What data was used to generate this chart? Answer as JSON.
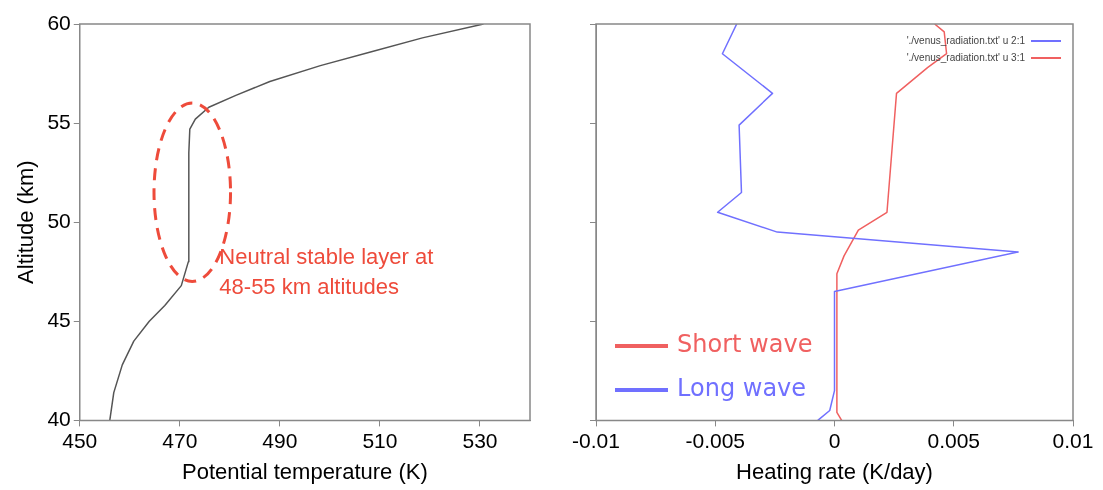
{
  "chart_data": [
    {
      "type": "line",
      "xlabel": "Potential temperature (K)",
      "ylabel": "Altitude (km)",
      "series": [
        {
          "color": "#555555",
          "x": [
            456,
            456.8,
            458.5,
            460.8,
            463.9,
            467.0,
            470.3,
            471.7,
            471.8,
            472.0,
            473.1,
            475.8,
            481.2,
            488,
            498.1,
            508.3,
            518.5,
            530.7
          ],
          "values": [
            40,
            41.4,
            42.8,
            44.0,
            45.0,
            45.8,
            46.8,
            48.0,
            53.5,
            54.7,
            55.2,
            55.8,
            56.4,
            57.1,
            57.9,
            58.6,
            59.3,
            60
          ]
        }
      ],
      "xlim": [
        450,
        540
      ],
      "xticks": [
        450,
        470,
        490,
        510,
        530
      ],
      "ylim": [
        40,
        60
      ],
      "yticks": [
        40,
        45,
        50,
        55,
        60
      ],
      "grid": false,
      "legend": false,
      "annotations": [
        "Neutral stable layer at 48-55 km altitudes"
      ]
    },
    {
      "type": "line",
      "xlabel": "Heating rate (K/day)",
      "series": [
        {
          "name": "'./venus_radiation.txt' u 2:1",
          "color": "#7070ff",
          "x": [
            -0.0007,
            -0.0002,
            0,
            0,
            0.0077,
            -0.0024,
            -0.0049,
            -0.0039,
            -0.004,
            -0.0026,
            -0.0047,
            -0.0041
          ],
          "values": [
            40,
            40.5,
            41.5,
            46.5,
            48.5,
            49.5,
            50.5,
            51.5,
            54.9,
            56.5,
            58.5,
            60
          ]
        },
        {
          "name": "'./venus_radiation.txt' u 3:1",
          "color": "#f06060",
          "x": [
            0.0003,
            0.0001,
            0.0001,
            0.0004,
            0.001,
            0.0022,
            0.0026,
            0.0039,
            0.0047,
            0.0046,
            0.0042
          ],
          "values": [
            40,
            40.4,
            47.4,
            48.3,
            49.6,
            50.5,
            56.5,
            57.8,
            58.5,
            59.6,
            60
          ]
        }
      ],
      "xlim": [
        -0.01,
        0.01
      ],
      "xticks": [
        -0.01,
        -0.005,
        0,
        0.005,
        0.01
      ],
      "ylim": [
        40,
        60
      ],
      "yticks": [
        40,
        45,
        50,
        55,
        60
      ],
      "tick_labels": "x",
      "grid": false,
      "legend": "top right",
      "annotations": [
        "Short wave",
        "Long wave"
      ]
    }
  ]
}
